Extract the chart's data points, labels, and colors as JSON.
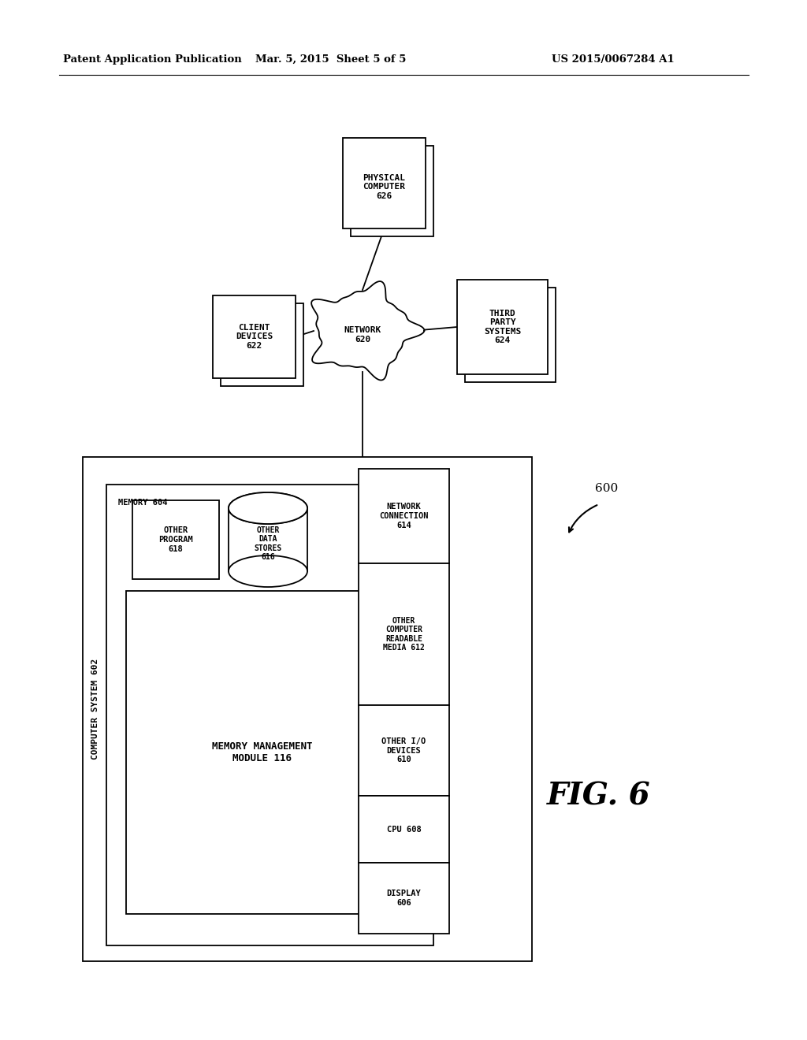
{
  "header_left": "Patent Application Publication",
  "header_center": "Mar. 5, 2015  Sheet 5 of 5",
  "header_right": "US 2015/0067284 A1",
  "fig_label": "FIG. 6",
  "fig_number": "600",
  "bg_color": "#ffffff",
  "line_color": "#000000"
}
